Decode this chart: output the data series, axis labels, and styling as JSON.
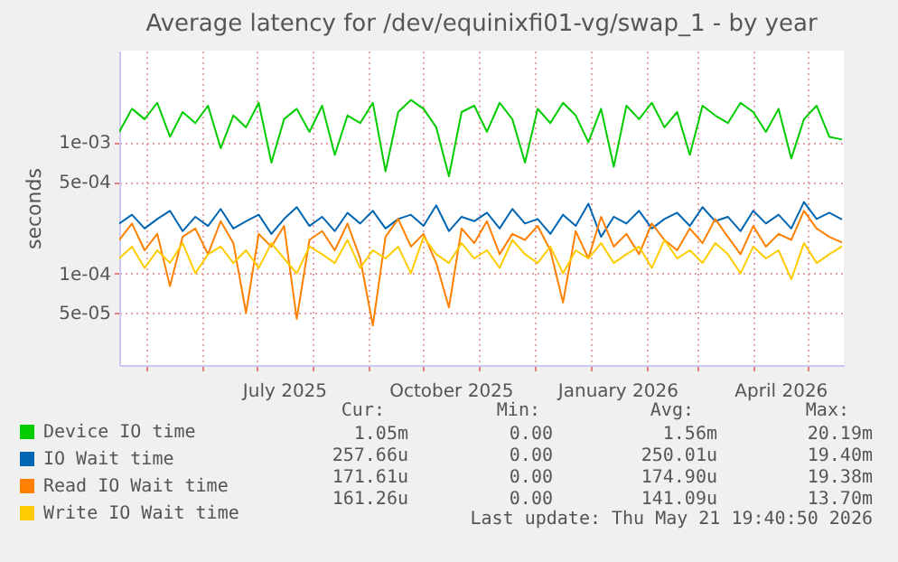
{
  "chart_data": {
    "type": "line",
    "title": "Average latency for /dev/equinixfi01-vg/swap_1 - by year",
    "ylabel": "seconds",
    "x": [
      "2025-04-16",
      "2025-04-23",
      "2025-04-30",
      "2025-05-07",
      "2025-05-14",
      "2025-05-21",
      "2025-05-28",
      "2025-06-04",
      "2025-06-11",
      "2025-06-18",
      "2025-06-25",
      "2025-07-02",
      "2025-07-09",
      "2025-07-16",
      "2025-07-23",
      "2025-07-30",
      "2025-08-06",
      "2025-08-13",
      "2025-08-20",
      "2025-08-27",
      "2025-09-03",
      "2025-09-10",
      "2025-09-17",
      "2025-09-24",
      "2025-10-01",
      "2025-10-08",
      "2025-10-15",
      "2025-10-22",
      "2025-10-29",
      "2025-11-05",
      "2025-11-12",
      "2025-11-19",
      "2025-11-26",
      "2025-12-03",
      "2025-12-10",
      "2025-12-17",
      "2025-12-24",
      "2025-12-31",
      "2026-01-07",
      "2026-01-14",
      "2026-01-21",
      "2026-01-28",
      "2026-02-04",
      "2026-02-11",
      "2026-02-18",
      "2026-02-25",
      "2026-03-04",
      "2026-03-11",
      "2026-03-18",
      "2026-03-25",
      "2026-04-01",
      "2026-04-08",
      "2026-04-15",
      "2026-04-22",
      "2026-04-29",
      "2026-05-06",
      "2026-05-13",
      "2026-05-20"
    ],
    "series": [
      {
        "name": "Device IO time",
        "color": "#00cc00",
        "values": [
          0.0012,
          0.0018,
          0.0015,
          0.002,
          0.0011,
          0.0017,
          0.0014,
          0.0019,
          0.0009,
          0.0016,
          0.0013,
          0.002,
          0.0007,
          0.0015,
          0.0018,
          0.0012,
          0.0019,
          0.0008,
          0.0016,
          0.0014,
          0.002,
          0.0006,
          0.0017,
          0.0021,
          0.0018,
          0.0013,
          0.00055,
          0.0017,
          0.0019,
          0.0012,
          0.002,
          0.0015,
          0.0007,
          0.0018,
          0.0014,
          0.002,
          0.0016,
          0.001,
          0.0018,
          0.00065,
          0.0019,
          0.0015,
          0.002,
          0.0013,
          0.0017,
          0.0008,
          0.0019,
          0.0016,
          0.0014,
          0.002,
          0.0017,
          0.0012,
          0.0018,
          0.00075,
          0.0015,
          0.0019,
          0.0011,
          0.00105
        ]
      },
      {
        "name": "IO Wait time",
        "color": "#0066b3",
        "values": [
          0.00024,
          0.00028,
          0.00022,
          0.00026,
          0.0003,
          0.00021,
          0.00027,
          0.00023,
          0.00031,
          0.00022,
          0.00025,
          0.00028,
          0.0002,
          0.00026,
          0.00032,
          0.00023,
          0.00027,
          0.00021,
          0.00029,
          0.00024,
          0.0003,
          0.00022,
          0.00026,
          0.00028,
          0.00023,
          0.00033,
          0.00021,
          0.00027,
          0.00025,
          0.00029,
          0.00022,
          0.00031,
          0.00024,
          0.00026,
          0.0002,
          0.00028,
          0.00023,
          0.00034,
          0.00019,
          0.00027,
          0.00024,
          0.0003,
          0.00022,
          0.00026,
          0.00029,
          0.00023,
          0.00032,
          0.00025,
          0.00027,
          0.00021,
          0.0003,
          0.00024,
          0.00028,
          0.00022,
          0.00035,
          0.00026,
          0.00029,
          0.000258
        ]
      },
      {
        "name": "Read IO Wait time",
        "color": "#ff8000",
        "values": [
          0.00018,
          0.00024,
          0.00015,
          0.0002,
          8e-05,
          0.00019,
          0.00022,
          0.00014,
          0.00025,
          0.00017,
          5e-05,
          0.0002,
          0.00016,
          0.00023,
          4.5e-05,
          0.00018,
          0.00021,
          0.00015,
          0.00024,
          0.00013,
          4e-05,
          0.00019,
          0.00026,
          0.00016,
          0.0002,
          0.00012,
          5.5e-05,
          0.00022,
          0.00017,
          0.00025,
          0.00014,
          0.0002,
          0.00018,
          0.00023,
          0.00015,
          6e-05,
          0.00021,
          0.00013,
          0.00027,
          0.00016,
          0.0002,
          0.00014,
          0.00024,
          0.00018,
          0.00015,
          0.00022,
          0.00017,
          0.00026,
          0.00019,
          0.00014,
          0.00023,
          0.00016,
          0.0002,
          0.00018,
          0.0003,
          0.00022,
          0.00019,
          0.000172
        ]
      },
      {
        "name": "Write IO Wait time",
        "color": "#ffcc00",
        "values": [
          0.00013,
          0.00016,
          0.00011,
          0.00015,
          0.00012,
          0.00017,
          0.0001,
          0.00014,
          0.00016,
          0.00012,
          0.00015,
          0.00011,
          0.00017,
          0.00013,
          0.0001,
          0.00016,
          0.00014,
          0.00012,
          0.00018,
          0.00011,
          0.00015,
          0.00013,
          0.00016,
          0.0001,
          0.00019,
          0.00014,
          0.00012,
          0.00017,
          0.00013,
          0.00015,
          0.00011,
          0.00018,
          0.00014,
          0.00012,
          0.00016,
          0.0001,
          0.00015,
          0.00013,
          0.00017,
          0.00012,
          0.00014,
          0.00016,
          0.00011,
          0.00018,
          0.00013,
          0.00015,
          0.00012,
          0.00017,
          0.00014,
          0.0001,
          0.00016,
          0.00013,
          0.00015,
          9e-05,
          0.00017,
          0.00012,
          0.00014,
          0.000161
        ]
      }
    ],
    "log": true,
    "xlim": [
      "2025-04-16",
      "2026-05-21"
    ],
    "xticks": [
      {
        "value": "2025-05-01",
        "label": null
      },
      {
        "value": "2025-06-01",
        "label": null
      },
      {
        "value": "2025-07-01",
        "label": null
      },
      {
        "value": "2025-07-16",
        "label": "July 2025"
      },
      {
        "value": "2025-08-01",
        "label": null
      },
      {
        "value": "2025-09-01",
        "label": null
      },
      {
        "value": "2025-10-01",
        "label": null
      },
      {
        "value": "2025-10-16",
        "label": "October 2025"
      },
      {
        "value": "2025-11-01",
        "label": null
      },
      {
        "value": "2025-12-01",
        "label": null
      },
      {
        "value": "2026-01-01",
        "label": null
      },
      {
        "value": "2026-01-16",
        "label": "January 2026"
      },
      {
        "value": "2026-02-01",
        "label": null
      },
      {
        "value": "2026-03-01",
        "label": null
      },
      {
        "value": "2026-04-01",
        "label": null
      },
      {
        "value": "2026-04-16",
        "label": "April 2026"
      },
      {
        "value": "2026-05-01",
        "label": null
      }
    ],
    "ylim": [
      2e-05,
      0.005
    ],
    "yticks": [
      {
        "value": 5e-05,
        "label": "5e-05"
      },
      {
        "value": 0.0001,
        "label": "1e-04"
      },
      {
        "value": 0.0005,
        "label": "5e-04"
      },
      {
        "value": 0.001,
        "label": "1e-03"
      }
    ],
    "grid": true,
    "legend": "bottom",
    "annotations": [
      "Cur:",
      "Min:",
      "Avg:",
      "Max:",
      "1.05m",
      "0.00",
      "1.56m",
      "20.19m",
      "257.66u",
      "0.00",
      "250.01u",
      "19.40m",
      "171.61u",
      "0.00",
      "174.90u",
      "19.38m",
      "161.26u",
      "0.00",
      "141.09u",
      "13.70m",
      "Last update: Thu May 21 19:40:50 2026"
    ]
  }
}
